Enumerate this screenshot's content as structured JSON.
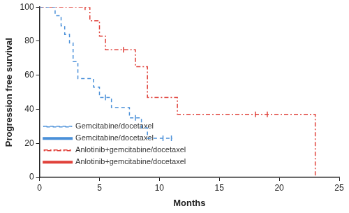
{
  "chart_data": {
    "type": "step",
    "x_label": "Months",
    "y_label": "Progression free survival",
    "xlim": [
      0,
      25
    ],
    "xticks": [
      0,
      5,
      10,
      15,
      20,
      25
    ],
    "ylim": [
      0,
      100
    ],
    "yticks": [
      0,
      20,
      40,
      60,
      80,
      100
    ],
    "grid": false,
    "legend": "upper right",
    "marker": "tick",
    "series": [
      {
        "name": "Gemcitabine/docetaxel",
        "color": "#4a90d9",
        "line_style": "dashed",
        "x": [
          0,
          1.3,
          1.8,
          2.1,
          2.5,
          2.8,
          3.2,
          4.5,
          5.0,
          6.0,
          7.5,
          8.5,
          9.0,
          11.1
        ],
        "values": [
          100,
          95,
          89,
          84,
          79,
          68,
          58,
          53,
          47,
          41,
          35,
          29,
          23,
          23
        ],
        "censored": {
          "x": [
            5.5,
            8.0,
            10.3,
            11.0
          ],
          "values": [
            47,
            35,
            23,
            23
          ]
        }
      },
      {
        "name": "Anlotinib+gemcitabine/docetaxel",
        "color": "#e0413a",
        "line_style": "dashdot",
        "x": [
          0,
          4.2,
          5.0,
          5.5,
          8.0,
          9.0,
          11.5,
          23,
          23
        ],
        "values": [
          100,
          92,
          83,
          75,
          65,
          47,
          37,
          37,
          0
        ],
        "censored": {
          "x": [
            3.8,
            7.0,
            18.0,
            19.0
          ],
          "values": [
            100,
            75,
            37,
            37
          ]
        }
      }
    ]
  }
}
